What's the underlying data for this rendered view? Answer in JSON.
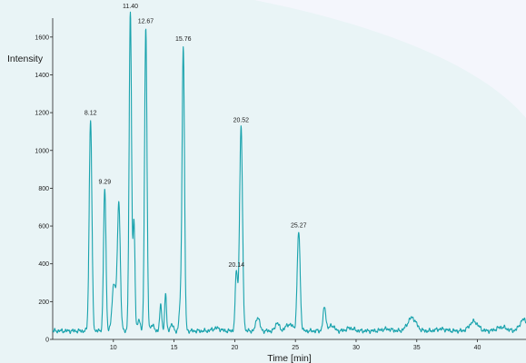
{
  "chart_data": {
    "type": "line",
    "title": "",
    "xlabel": "Time [min]",
    "ylabel": "Intensity",
    "xlim": [
      5,
      44
    ],
    "ylim": [
      0,
      1700
    ],
    "x_ticks": [
      10,
      15,
      20,
      25,
      30,
      35,
      40
    ],
    "y_ticks": [
      0,
      200,
      400,
      600,
      800,
      1000,
      1200,
      1400,
      1600
    ],
    "grid": false,
    "series": [
      {
        "color": "#1aa3ad",
        "baseline": 45,
        "peaks": [
          {
            "x": 8.12,
            "y": 1165,
            "w": 0.11
          },
          {
            "x": 9.29,
            "y": 800,
            "w": 0.1
          },
          {
            "x": 10.05,
            "y": 300,
            "w": 0.15
          },
          {
            "x": 10.45,
            "y": 720,
            "w": 0.12
          },
          {
            "x": 11.4,
            "y": 1730,
            "w": 0.1
          },
          {
            "x": 11.7,
            "y": 620,
            "w": 0.08
          },
          {
            "x": 12.1,
            "y": 110,
            "w": 0.1
          },
          {
            "x": 12.67,
            "y": 1650,
            "w": 0.1
          },
          {
            "x": 13.2,
            "y": 80,
            "w": 0.12
          },
          {
            "x": 13.9,
            "y": 175,
            "w": 0.09
          },
          {
            "x": 14.3,
            "y": 250,
            "w": 0.07
          },
          {
            "x": 14.8,
            "y": 80,
            "w": 0.12
          },
          {
            "x": 15.5,
            "y": 170,
            "w": 0.09
          },
          {
            "x": 15.76,
            "y": 1555,
            "w": 0.1
          },
          {
            "x": 18.5,
            "y": 60,
            "w": 0.3
          },
          {
            "x": 20.14,
            "y": 360,
            "w": 0.1
          },
          {
            "x": 20.52,
            "y": 1125,
            "w": 0.12
          },
          {
            "x": 21.9,
            "y": 120,
            "w": 0.15
          },
          {
            "x": 23.5,
            "y": 90,
            "w": 0.15
          },
          {
            "x": 24.5,
            "y": 80,
            "w": 0.3
          },
          {
            "x": 25.27,
            "y": 570,
            "w": 0.12
          },
          {
            "x": 27.4,
            "y": 170,
            "w": 0.12
          },
          {
            "x": 28.0,
            "y": 75,
            "w": 0.2
          },
          {
            "x": 29.5,
            "y": 60,
            "w": 0.3
          },
          {
            "x": 32.5,
            "y": 55,
            "w": 0.4
          },
          {
            "x": 34.6,
            "y": 115,
            "w": 0.35
          },
          {
            "x": 37.0,
            "y": 55,
            "w": 0.4
          },
          {
            "x": 39.7,
            "y": 95,
            "w": 0.35
          },
          {
            "x": 42.0,
            "y": 65,
            "w": 0.4
          },
          {
            "x": 43.8,
            "y": 105,
            "w": 0.3
          }
        ]
      }
    ],
    "annotations": [
      {
        "text": "8.12",
        "x": 8.12,
        "y": 1165
      },
      {
        "text": "9.29",
        "x": 9.29,
        "y": 800
      },
      {
        "text": "11.40",
        "x": 11.4,
        "y": 1730
      },
      {
        "text": "12.67",
        "x": 12.67,
        "y": 1650
      },
      {
        "text": "15.76",
        "x": 15.76,
        "y": 1555
      },
      {
        "text": "20.14",
        "x": 20.14,
        "y": 360
      },
      {
        "text": "20.52",
        "x": 20.52,
        "y": 1125
      },
      {
        "text": "25.27",
        "x": 25.27,
        "y": 570
      }
    ]
  }
}
